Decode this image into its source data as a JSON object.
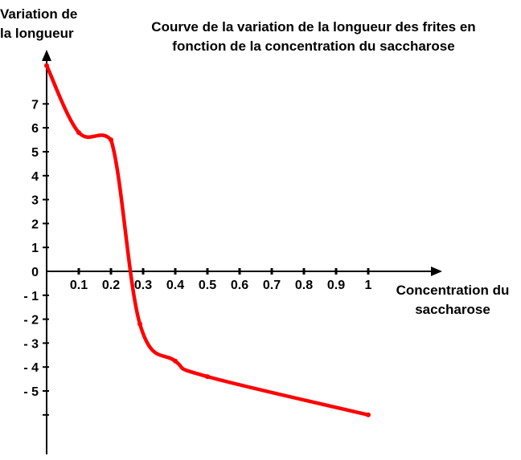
{
  "chart_data": {
    "type": "line",
    "title_lines": [
      "Courve de la variation de la longueur des frites en",
      "fonction de la concentration du saccharose"
    ],
    "ylabel_lines": [
      "Variation de",
      "la longueur"
    ],
    "xlabel_lines": [
      "Concentration du",
      "saccharose"
    ],
    "x_ticks": [
      {
        "value": 0.1,
        "label": "0.1"
      },
      {
        "value": 0.2,
        "label": "0.2"
      },
      {
        "value": 0.3,
        "label": "0.3"
      },
      {
        "value": 0.4,
        "label": "0.4"
      },
      {
        "value": 0.5,
        "label": "0.5"
      },
      {
        "value": 0.6,
        "label": "0.6"
      },
      {
        "value": 0.7,
        "label": "0.7"
      },
      {
        "value": 0.8,
        "label": "0.8"
      },
      {
        "value": 0.9,
        "label": "0.9"
      },
      {
        "value": 1,
        "label": "1"
      }
    ],
    "y_ticks": [
      {
        "value": 7,
        "label": "7"
      },
      {
        "value": 6,
        "label": "6"
      },
      {
        "value": 5,
        "label": "5"
      },
      {
        "value": 4,
        "label": "4"
      },
      {
        "value": 3,
        "label": "3"
      },
      {
        "value": 2,
        "label": "2"
      },
      {
        "value": 1,
        "label": "1"
      },
      {
        "value": 0,
        "label": "0"
      },
      {
        "value": -1,
        "label": "- 1"
      },
      {
        "value": -2,
        "label": "- 2"
      },
      {
        "value": -3,
        "label": "- 3"
      },
      {
        "value": -4,
        "label": "- 4"
      },
      {
        "value": -5,
        "label": "- 5"
      },
      {
        "value": -6,
        "label": ""
      }
    ],
    "xlim": [
      0,
      1.2
    ],
    "ylim": [
      -7.5,
      9
    ],
    "series": [
      {
        "color": "#ff0000",
        "x": [
          0,
          0.1,
          0.2,
          0.29,
          0.4,
          0.5,
          1.0
        ],
        "y": [
          8.6,
          5.8,
          5.5,
          -2.2,
          -3.75,
          -4.4,
          -6.0
        ]
      }
    ]
  }
}
